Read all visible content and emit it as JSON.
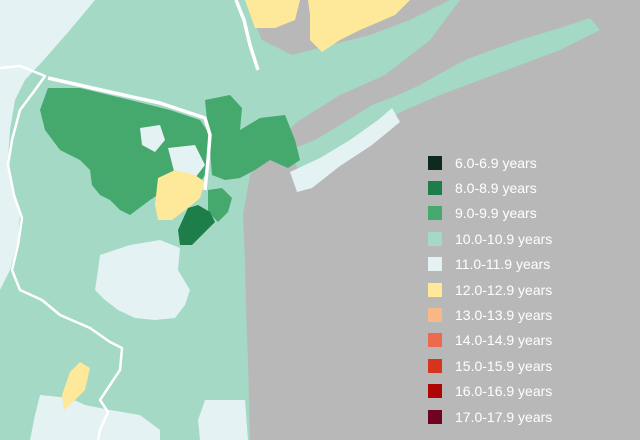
{
  "colors": {
    "water": "#b8b8b8",
    "boundary": "#ffffff"
  },
  "legend": {
    "items": [
      {
        "label": "6.0-6.9 years",
        "color": "#0f2a1c"
      },
      {
        "label": "8.0-8.9 years",
        "color": "#1e7e49"
      },
      {
        "label": "9.0-9.9 years",
        "color": "#45a86d"
      },
      {
        "label": "10.0-10.9 years",
        "color": "#a3d9c5"
      },
      {
        "label": "11.0-11.9 years",
        "color": "#e4f2f3"
      },
      {
        "label": "12.0-12.9 years",
        "color": "#fde999"
      },
      {
        "label": "13.0-13.9 years",
        "color": "#f8b787"
      },
      {
        "label": "14.0-14.9 years",
        "color": "#ee6a4f"
      },
      {
        "label": "15.0-15.9 years",
        "color": "#d7341e"
      },
      {
        "label": "16.0-16.9 years",
        "color": "#b00505"
      },
      {
        "label": "17.0-17.9 years",
        "color": "#6e0422"
      }
    ]
  }
}
